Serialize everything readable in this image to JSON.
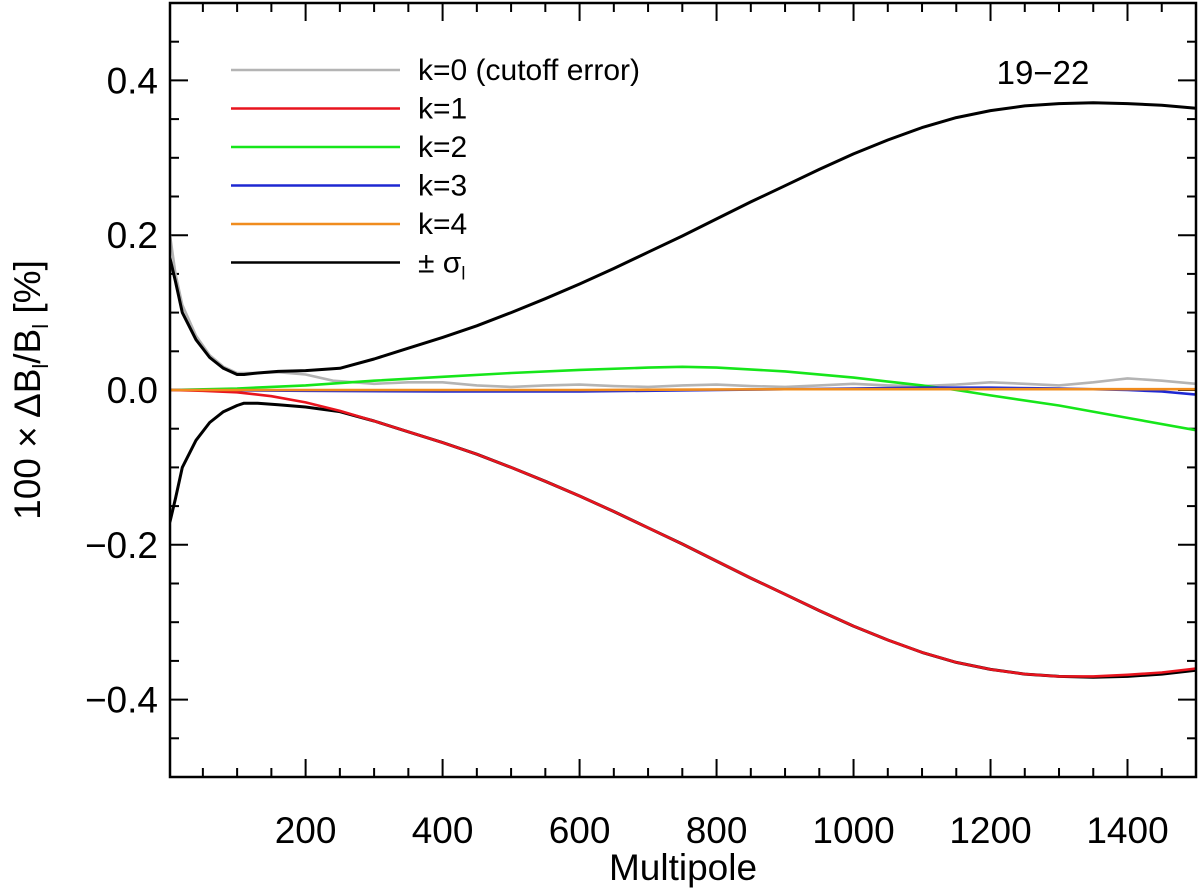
{
  "chart_data": {
    "type": "line",
    "xlabel": "Multipole",
    "ylabel_parts": {
      "prefix": "100 × ΔB",
      "sub1": "l",
      "mid": "/B",
      "sub2": "l",
      "suffix": " [%]"
    },
    "xlim": [
      2,
      1500
    ],
    "ylim": [
      -0.5,
      0.5
    ],
    "xticks": [
      200,
      400,
      600,
      800,
      1000,
      1200,
      1400
    ],
    "xtick_labels": [
      "200",
      "400",
      "600",
      "800",
      "1000",
      "1200",
      "1400"
    ],
    "yticks": [
      -0.4,
      -0.2,
      0.0,
      0.2,
      0.4
    ],
    "ytick_labels": [
      "−0.4",
      "−0.2",
      "0.0",
      "0.2",
      "0.4"
    ],
    "annotation": "19−22",
    "legend": [
      {
        "label": "k=0 (cutoff error)",
        "color": "#b4b4b4"
      },
      {
        "label": "k=1",
        "color": "#e8141e"
      },
      {
        "label": "k=2",
        "color": "#16e61a"
      },
      {
        "label": "k=3",
        "color": "#1e28d2"
      },
      {
        "label": "k=4",
        "color": "#f08c1e"
      },
      {
        "label": "± σ",
        "sub": "l",
        "color": "#000000"
      }
    ],
    "series": [
      {
        "name": "k=0 (cutoff error)",
        "color": "#b4b4b4",
        "x": [
          2,
          10,
          20,
          40,
          60,
          80,
          100,
          130,
          160,
          200,
          240,
          300,
          350,
          400,
          450,
          500,
          550,
          600,
          650,
          700,
          750,
          800,
          850,
          900,
          950,
          1000,
          1050,
          1100,
          1150,
          1200,
          1250,
          1300,
          1350,
          1400,
          1450,
          1500
        ],
        "y": [
          0.2,
          0.15,
          0.11,
          0.07,
          0.045,
          0.03,
          0.022,
          0.022,
          0.023,
          0.02,
          0.012,
          0.008,
          0.01,
          0.01,
          0.006,
          0.004,
          0.006,
          0.007,
          0.005,
          0.004,
          0.006,
          0.007,
          0.005,
          0.004,
          0.006,
          0.008,
          0.006,
          0.005,
          0.007,
          0.01,
          0.008,
          0.006,
          0.01,
          0.015,
          0.012,
          0.008
        ]
      },
      {
        "name": "k=1",
        "color": "#e8141e",
        "x": [
          2,
          50,
          100,
          150,
          200,
          250,
          300,
          350,
          400,
          450,
          500,
          550,
          600,
          650,
          700,
          750,
          800,
          850,
          900,
          950,
          1000,
          1050,
          1100,
          1150,
          1200,
          1250,
          1300,
          1350,
          1400,
          1450,
          1500
        ],
        "y": [
          0,
          -0.001,
          -0.003,
          -0.008,
          -0.016,
          -0.027,
          -0.04,
          -0.054,
          -0.068,
          -0.083,
          -0.1,
          -0.118,
          -0.137,
          -0.157,
          -0.178,
          -0.199,
          -0.221,
          -0.243,
          -0.264,
          -0.285,
          -0.305,
          -0.323,
          -0.339,
          -0.352,
          -0.361,
          -0.367,
          -0.37,
          -0.37,
          -0.368,
          -0.365,
          -0.36
        ]
      },
      {
        "name": "k=2",
        "color": "#16e61a",
        "x": [
          2,
          100,
          200,
          300,
          400,
          500,
          600,
          700,
          750,
          800,
          900,
          1000,
          1100,
          1150,
          1200,
          1300,
          1400,
          1500
        ],
        "y": [
          0,
          0.002,
          0.006,
          0.012,
          0.017,
          0.022,
          0.026,
          0.029,
          0.03,
          0.029,
          0.024,
          0.016,
          0.006,
          0.0,
          -0.007,
          -0.02,
          -0.036,
          -0.052
        ]
      },
      {
        "name": "k=3",
        "color": "#1e28d2",
        "x": [
          2,
          200,
          400,
          600,
          800,
          1000,
          1100,
          1200,
          1300,
          1400,
          1450,
          1500
        ],
        "y": [
          0,
          -0.001,
          -0.002,
          -0.002,
          0.0,
          0.002,
          0.003,
          0.003,
          0.002,
          0.0,
          -0.002,
          -0.006
        ]
      },
      {
        "name": "k=4",
        "color": "#f08c1e",
        "x": [
          2,
          300,
          600,
          900,
          1200,
          1500
        ],
        "y": [
          0,
          0.0,
          0.0,
          0.001,
          0.001,
          0.001
        ]
      },
      {
        "name": "+σ",
        "color": "#000000",
        "x": [
          2,
          10,
          20,
          40,
          60,
          80,
          100,
          110,
          130,
          160,
          200,
          250,
          300,
          350,
          400,
          450,
          500,
          550,
          600,
          650,
          700,
          750,
          800,
          850,
          900,
          950,
          1000,
          1050,
          1100,
          1150,
          1200,
          1250,
          1300,
          1350,
          1400,
          1450,
          1500
        ],
        "y": [
          0.17,
          0.14,
          0.1,
          0.065,
          0.042,
          0.028,
          0.02,
          0.02,
          0.022,
          0.024,
          0.025,
          0.028,
          0.04,
          0.054,
          0.068,
          0.083,
          0.1,
          0.118,
          0.137,
          0.157,
          0.178,
          0.199,
          0.221,
          0.243,
          0.264,
          0.285,
          0.305,
          0.323,
          0.339,
          0.352,
          0.361,
          0.367,
          0.37,
          0.371,
          0.37,
          0.368,
          0.364
        ]
      },
      {
        "name": "−σ",
        "color": "#000000",
        "x": [
          2,
          10,
          20,
          40,
          60,
          80,
          100,
          110,
          130,
          160,
          200,
          250,
          300,
          350,
          400,
          450,
          500,
          550,
          600,
          650,
          700,
          750,
          800,
          850,
          900,
          950,
          1000,
          1050,
          1100,
          1150,
          1200,
          1250,
          1300,
          1350,
          1400,
          1450,
          1500
        ],
        "y": [
          -0.17,
          -0.14,
          -0.1,
          -0.065,
          -0.042,
          -0.028,
          -0.02,
          -0.017,
          -0.017,
          -0.019,
          -0.022,
          -0.028,
          -0.04,
          -0.054,
          -0.068,
          -0.083,
          -0.1,
          -0.118,
          -0.137,
          -0.157,
          -0.178,
          -0.199,
          -0.221,
          -0.243,
          -0.264,
          -0.285,
          -0.305,
          -0.323,
          -0.339,
          -0.352,
          -0.361,
          -0.367,
          -0.37,
          -0.371,
          -0.37,
          -0.367,
          -0.362
        ]
      }
    ]
  }
}
